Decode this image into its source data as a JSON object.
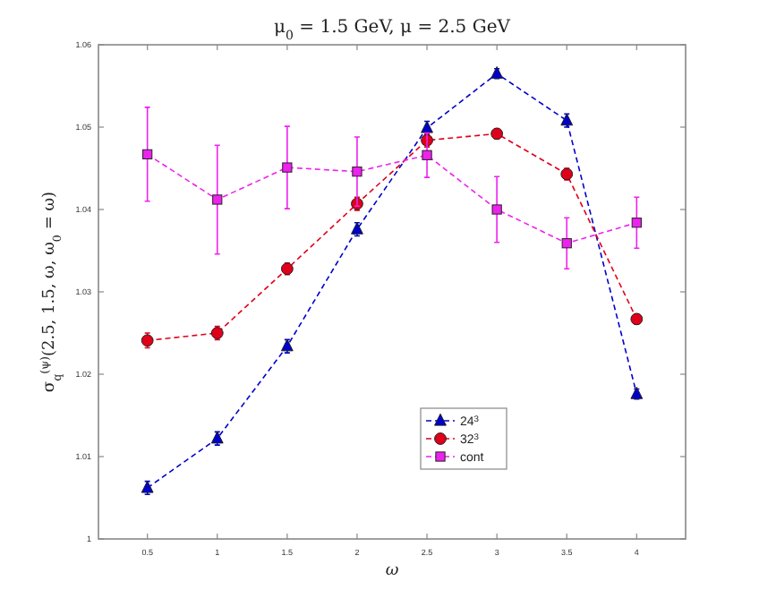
{
  "chart_data": {
    "type": "line",
    "title": "μ$_{0}$ = 1.5 GeV, μ = 2.5 GeV",
    "xlabel": "ω",
    "ylabel": "σ$_{q}$$^{(ψ)}$(2.5, 1.5, ω, ω$_{0}$ = ω)",
    "x": [
      0.5,
      1,
      1.5,
      2,
      2.5,
      3,
      3.5,
      4
    ],
    "xlim": [
      0.15,
      4.35
    ],
    "xticks": [
      0.5,
      1,
      1.5,
      2,
      2.5,
      3,
      3.5,
      4
    ],
    "ylim": [
      1,
      1.06
    ],
    "yticks": [
      1,
      1.01,
      1.02,
      1.03,
      1.04,
      1.05,
      1.06
    ],
    "grid": false,
    "legend": "bottom right",
    "line_style": "dashed",
    "series": [
      {
        "name": "24$^{3}$",
        "color": "#0000cc",
        "marker": "triangle",
        "values": [
          1.0062,
          1.0122,
          1.0234,
          1.0376,
          1.0499,
          1.0565,
          1.0508,
          1.0176
        ],
        "errors": [
          0.0008,
          0.0008,
          0.0008,
          0.0008,
          0.0008,
          0.0006,
          0.0008,
          0.0006
        ]
      },
      {
        "name": "32$^{3}$",
        "color": "#e0001a",
        "marker": "circle",
        "values": [
          1.0241,
          1.025,
          1.0328,
          1.0407,
          1.0484,
          1.0492,
          1.0443,
          1.0267
        ],
        "errors": [
          0.0009,
          0.0008,
          0.0007,
          0.0008,
          0.0008,
          0.0006,
          0.0007,
          0.0006
        ]
      },
      {
        "name": "cont",
        "color": "#ee22ee",
        "marker": "square",
        "values": [
          1.0467,
          1.0412,
          1.0451,
          1.0446,
          1.0466,
          1.04,
          1.0359,
          1.0384
        ],
        "errors": [
          0.0057,
          0.0066,
          0.005,
          0.0042,
          0.0027,
          0.004,
          0.0031,
          0.0031
        ]
      }
    ]
  }
}
